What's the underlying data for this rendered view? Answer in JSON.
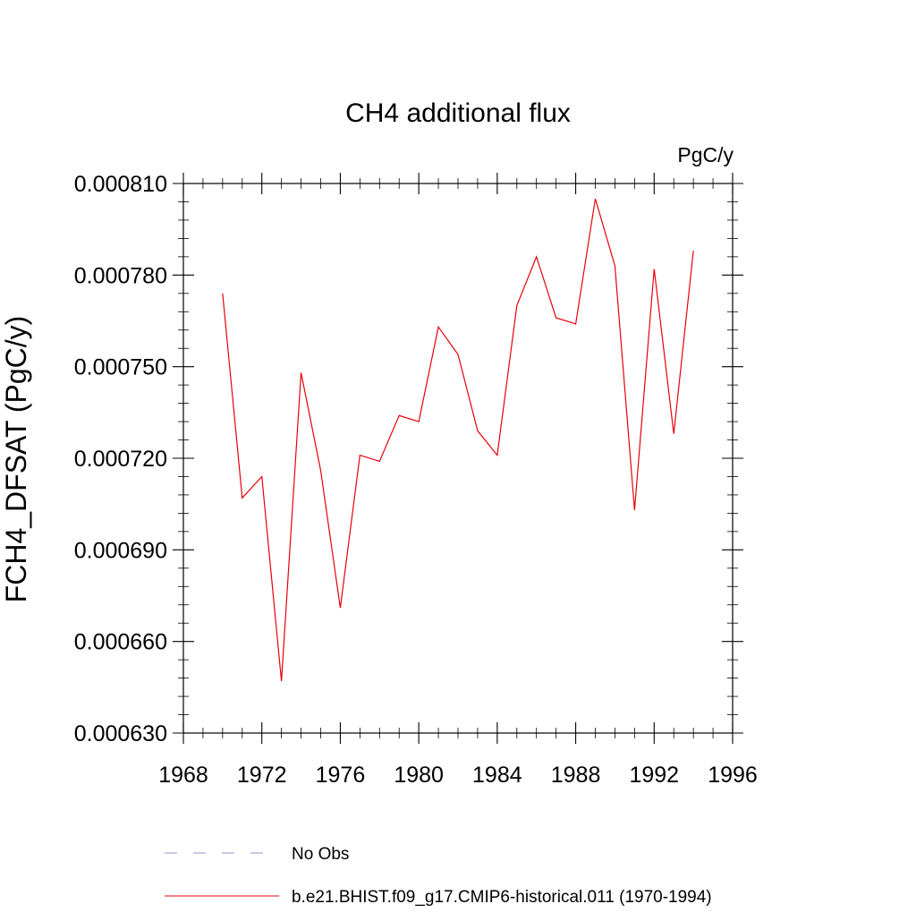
{
  "chart_data": {
    "type": "line",
    "title": "CH4 additional flux",
    "units": "PgC/y",
    "ylabel": "FCH4_DFSAT  (PgC/y)",
    "xlabel": "",
    "xlim": [
      1968,
      1996
    ],
    "ylim": [
      0.00063,
      0.00081
    ],
    "x_ticks": [
      1968,
      1972,
      1976,
      1980,
      1984,
      1988,
      1992,
      1996
    ],
    "x_tick_labels": [
      "1968",
      "1972",
      "1976",
      "1980",
      "1984",
      "1988",
      "1992",
      "1996"
    ],
    "y_ticks": [
      0.00063,
      0.00066,
      0.00069,
      0.00072,
      0.00075,
      0.00078,
      0.00081
    ],
    "y_tick_labels": [
      "0.000630",
      "0.000660",
      "0.000690",
      "0.000720",
      "0.000750",
      "0.000780",
      "0.000810"
    ],
    "grid": false,
    "legend_position": "bottom",
    "series": [
      {
        "name": "No Obs",
        "color": "#9a8fc8",
        "style": "dashed",
        "x": [],
        "values": []
      },
      {
        "name": "b.e21.BHIST.f09_g17.CMIP6-historical.011 (1970-1994)",
        "color": "#e8000b",
        "style": "solid",
        "x": [
          1970,
          1971,
          1972,
          1973,
          1974,
          1975,
          1976,
          1977,
          1978,
          1979,
          1980,
          1981,
          1982,
          1983,
          1984,
          1985,
          1986,
          1987,
          1988,
          1989,
          1990,
          1991,
          1992,
          1993,
          1994
        ],
        "values": [
          0.000774,
          0.000707,
          0.000714,
          0.000647,
          0.000748,
          0.000716,
          0.000671,
          0.000721,
          0.000719,
          0.000734,
          0.000732,
          0.000763,
          0.000754,
          0.000729,
          0.000721,
          0.00077,
          0.000786,
          0.000766,
          0.000764,
          0.000805,
          0.000783,
          0.000703,
          0.000782,
          0.000728,
          0.000788
        ]
      }
    ]
  }
}
